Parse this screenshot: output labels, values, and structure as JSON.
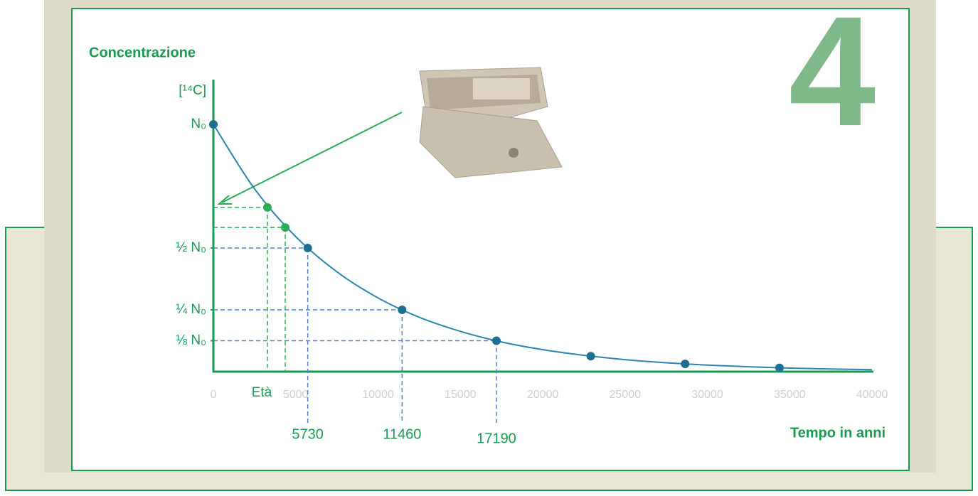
{
  "chart_data": {
    "type": "line",
    "panel_number": "4",
    "y_title": "Concentrazione",
    "y_unit": "[¹⁴C]",
    "x_title": "Tempo in anni",
    "sample_label": "Età",
    "xlim": [
      0,
      40000
    ],
    "ylim": [
      0,
      1
    ],
    "xticks": [
      0,
      5000,
      10000,
      15000,
      20000,
      25000,
      30000,
      35000,
      40000
    ],
    "yticks": [
      {
        "value": 1,
        "label": "N₀"
      },
      {
        "value": 0.5,
        "label": "½ N₀"
      },
      {
        "value": 0.25,
        "label": "¼ N₀"
      },
      {
        "value": 0.125,
        "label": "⅛ N₀"
      }
    ],
    "half_lives": [
      5730,
      11460,
      17190
    ],
    "curve": {
      "color": "#2b86b0",
      "x": [
        0,
        2500,
        5000,
        7500,
        10000,
        12500,
        15000,
        17500,
        20000,
        22500,
        25000,
        27500,
        30000,
        32500,
        35000,
        37500,
        40000
      ],
      "values": [
        1,
        0.739,
        0.546,
        0.404,
        0.298,
        0.22,
        0.163,
        0.12,
        0.089,
        0.066,
        0.0486,
        0.0359,
        0.0266,
        0.0196,
        0.0145,
        0.0107,
        0.0079
      ]
    },
    "points": {
      "color": "#1f6f95",
      "x": [
        0,
        5730,
        11460,
        17190,
        22920,
        28650,
        34380
      ],
      "values": [
        1,
        0.5,
        0.25,
        0.125,
        0.0625,
        0.03125,
        0.015625
      ]
    },
    "sample_points": {
      "color": "#2aae55",
      "x": [
        3283,
        4363
      ],
      "values": [
        0.664,
        0.583
      ]
    }
  }
}
